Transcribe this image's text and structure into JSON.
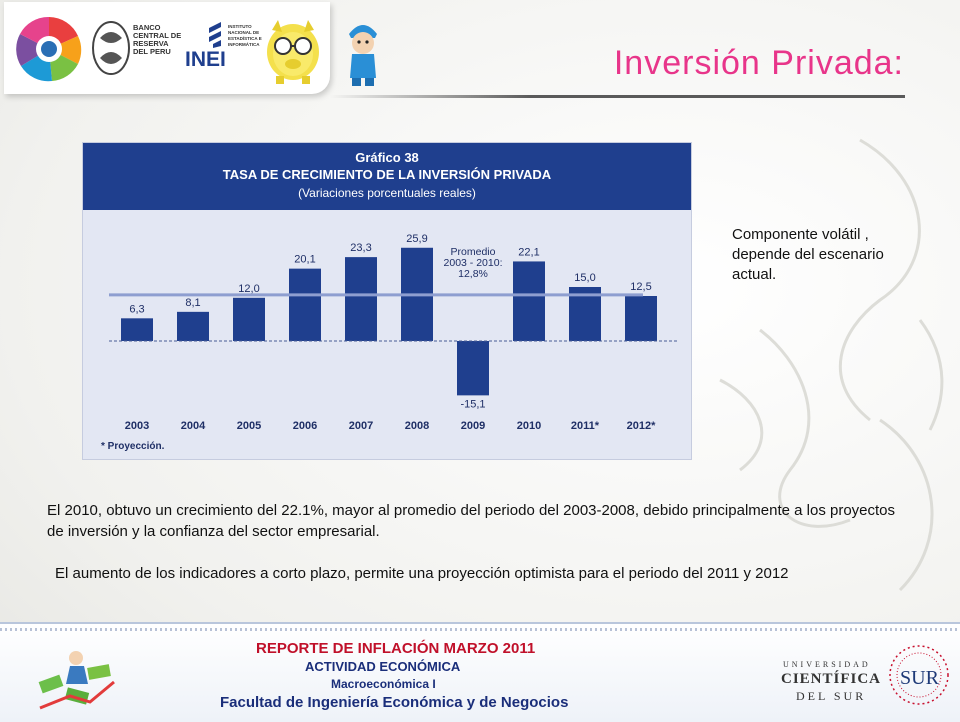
{
  "header": {
    "title": "Inversión Privada:",
    "logos": {
      "bcrp": "BANCO CENTRAL DE RESERVA DEL PERU",
      "inei": "INEI",
      "inei_sub": "INSTITUTO NACIONAL DE ESTADÍSTICA E INFORMÁTICA"
    }
  },
  "chart_data": {
    "type": "bar",
    "label": "Gráfico 38",
    "title": "TASA DE CRECIMIENTO DE LA INVERSIÓN PRIVADA",
    "subtitle": "(Variaciones porcentuales reales)",
    "categories": [
      "2003",
      "2004",
      "2005",
      "2006",
      "2007",
      "2008",
      "2009",
      "2010",
      "2011*",
      "2012*"
    ],
    "values": [
      6.3,
      8.1,
      12.0,
      20.1,
      23.3,
      25.9,
      -15.1,
      22.1,
      15.0,
      12.5
    ],
    "value_labels": [
      "6,3",
      "8,1",
      "12,0",
      "20,1",
      "23,3",
      "25,9",
      "-15,1",
      "22,1",
      "15,0",
      "12,5"
    ],
    "average": 12.8,
    "average_annotation": [
      "Promedio",
      "2003 - 2010:",
      "12,8%"
    ],
    "footnote": "* Proyección.",
    "ylim": [
      -19,
      30
    ],
    "bar_color": "#1f3f8e",
    "average_line_color": "#8e9ed0",
    "header_color": "#1f3f8e",
    "background_color": "#e3e7f3"
  },
  "side_note": "Componente volátil , depende del escenario actual.",
  "paragraphs": {
    "p1": "El 2010, obtuvo un crecimiento del 22.1%, mayor al promedio del periodo del 2003-2008, debido principalmente a los proyectos de inversión y  la confianza del sector empresarial.",
    "p2": "El aumento de los indicadores a corto plazo,  permite una proyección optimista para el periodo del 2011 y 2012"
  },
  "footer": {
    "line1": "REPORTE DE INFLACIÓN MARZO 2011",
    "line2": "ACTIVIDAD ECONÓMICA",
    "line3": "Macroeconómica I",
    "line4": "Facultad de Ingeniería Económica y de Negocios",
    "university": {
      "line1": "UNIVERSIDAD",
      "line2": "CIENTÍFICA",
      "line3": "DEL SUR",
      "badge": "SUR"
    }
  },
  "colors": {
    "title": "#e8358a",
    "footer_red": "#c0102a",
    "footer_blue": "#1a2e7a"
  }
}
